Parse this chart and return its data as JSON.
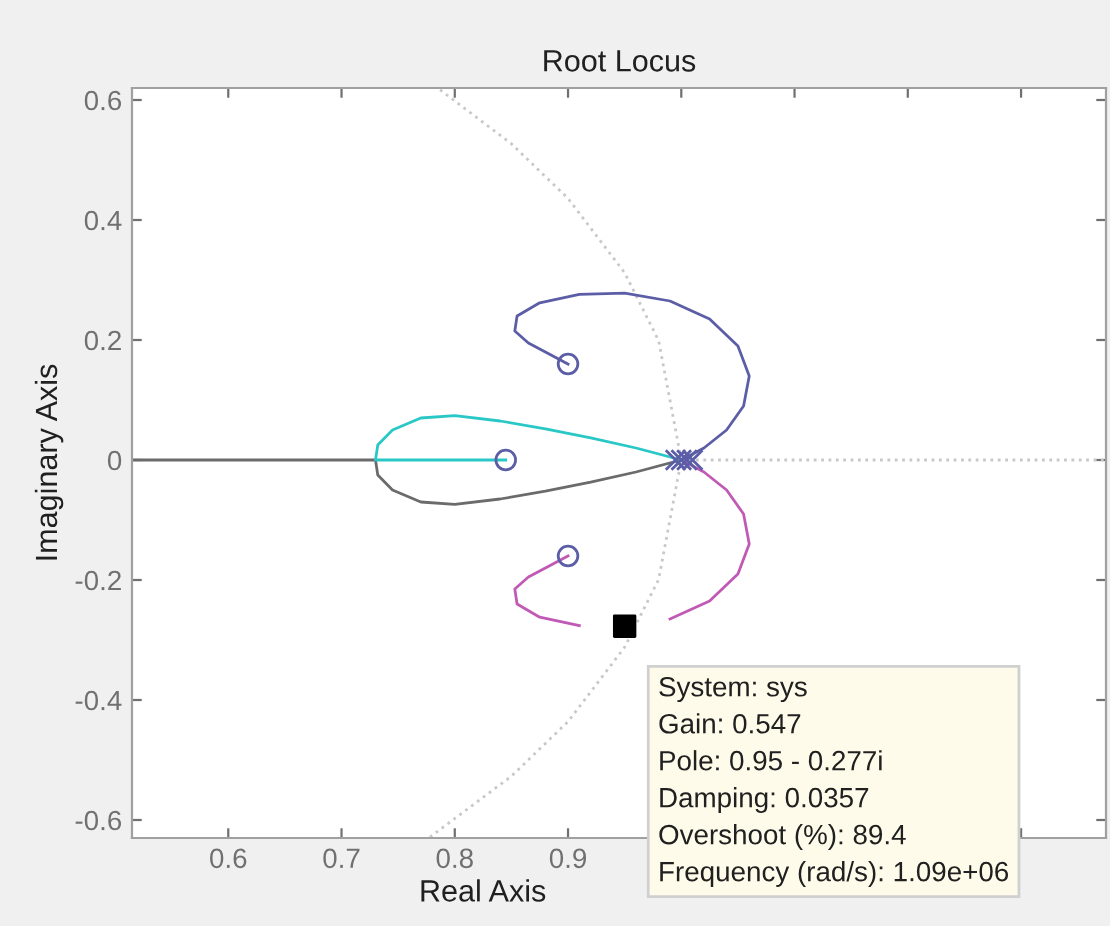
{
  "chart_data": {
    "type": "line",
    "title": "Root Locus",
    "xlabel": "Real Axis",
    "ylabel": "Imaginary Axis",
    "xlim": [
      0.515,
      1.375
    ],
    "ylim": [
      -0.63,
      0.62
    ],
    "xticks": [
      0.6,
      0.7,
      0.8,
      0.9,
      {
        "value": 1.0,
        "label": null
      },
      {
        "value": 1.1,
        "label": null
      },
      {
        "value": 1.2,
        "label": null
      },
      {
        "value": 1.3,
        "label": null
      }
    ],
    "yticks": [
      {
        "value": -0.6,
        "label": "-0.6"
      },
      {
        "value": -0.4,
        "label": "-0.4"
      },
      {
        "value": -0.2,
        "label": "-0.2"
      },
      {
        "value": 0,
        "label": "0"
      },
      0.2,
      0.4,
      0.6
    ],
    "grid": false,
    "series": [
      {
        "type": "line",
        "line_style": "dotted",
        "color": "#c8c8c8",
        "x": [
          0.787,
          0.85,
          0.9,
          0.95,
          0.98,
          1.0,
          0.98,
          0.95,
          0.9,
          0.85,
          0.777
        ],
        "values": [
          0.617,
          0.527,
          0.436,
          0.312,
          0.199,
          0,
          -0.199,
          -0.312,
          -0.436,
          -0.527,
          -0.63
        ]
      },
      {
        "type": "line",
        "line_style": "dotted",
        "color": "#c8c8c8",
        "x": [
          1.0,
          1.375
        ],
        "values": [
          0,
          0
        ]
      },
      {
        "line_style": "solid",
        "color": "#6b6b6b",
        "x": [
          1.0,
          0.96,
          0.92,
          0.88,
          0.84,
          0.8,
          0.77,
          0.745,
          0.732,
          0.73,
          0.515
        ],
        "values": [
          0,
          -0.02,
          -0.037,
          -0.052,
          -0.065,
          -0.074,
          -0.07,
          -0.05,
          -0.025,
          0,
          0
        ]
      },
      {
        "line_style": "solid",
        "color": "#2ac7c7",
        "x": [
          1.0,
          0.96,
          0.92,
          0.88,
          0.84,
          0.8,
          0.77,
          0.745,
          0.732,
          0.73,
          0.845
        ],
        "values": [
          0,
          0.02,
          0.037,
          0.052,
          0.065,
          0.074,
          0.07,
          0.05,
          0.025,
          0,
          0
        ]
      },
      {
        "line_style": "solid",
        "color": "#5b5ea6",
        "x": [
          1.0,
          1.02,
          1.04,
          1.055,
          1.06,
          1.05,
          1.025,
          0.99,
          0.95,
          0.91,
          0.875,
          0.855,
          0.853,
          0.865,
          0.885,
          0.9
        ],
        "values": [
          0,
          0.02,
          0.05,
          0.09,
          0.14,
          0.19,
          0.235,
          0.265,
          0.278,
          0.276,
          0.262,
          0.24,
          0.215,
          0.195,
          0.175,
          0.16
        ]
      },
      {
        "line_style": "solid",
        "color": "#c05ab5",
        "x": [
          1.0,
          1.02,
          1.04,
          1.055,
          1.06,
          1.05,
          1.025,
          0.99,
          0.95,
          0.91,
          0.875,
          0.855,
          0.853,
          0.865,
          0.885,
          0.9
        ],
        "values": [
          0,
          -0.02,
          -0.05,
          -0.09,
          -0.14,
          -0.19,
          -0.235,
          -0.265,
          null,
          -0.276,
          -0.262,
          -0.24,
          -0.215,
          -0.195,
          -0.175,
          -0.16
        ]
      },
      {
        "type": "scatter",
        "marker": "circle",
        "color": "#5b5ea6",
        "x": [
          0.9,
          0.9
        ],
        "values": [
          0.16,
          -0.16
        ]
      },
      {
        "type": "scatter",
        "marker": "circle",
        "color": "#5b5ea6",
        "x": [
          0.845
        ],
        "values": [
          0
        ]
      },
      {
        "type": "scatter",
        "marker": "cross",
        "color": "#5b5ea6",
        "x": [
          0.995,
          1.0,
          1.005,
          1.01
        ],
        "values": [
          0,
          0,
          0,
          0
        ]
      },
      {
        "type": "scatter",
        "marker": "square",
        "color": "#000000",
        "x": [
          0.95
        ],
        "values": [
          -0.277
        ]
      }
    ],
    "annotations": [
      {
        "text": "System: sys\nGain: 0.547\nPole: 0.95 - 0.277i\nDamping: 0.0357\nOvershoot (%): 89.4\nFrequency (rad/s): 1.09e+06",
        "x": 0.95,
        "y": -0.277
      }
    ]
  }
}
